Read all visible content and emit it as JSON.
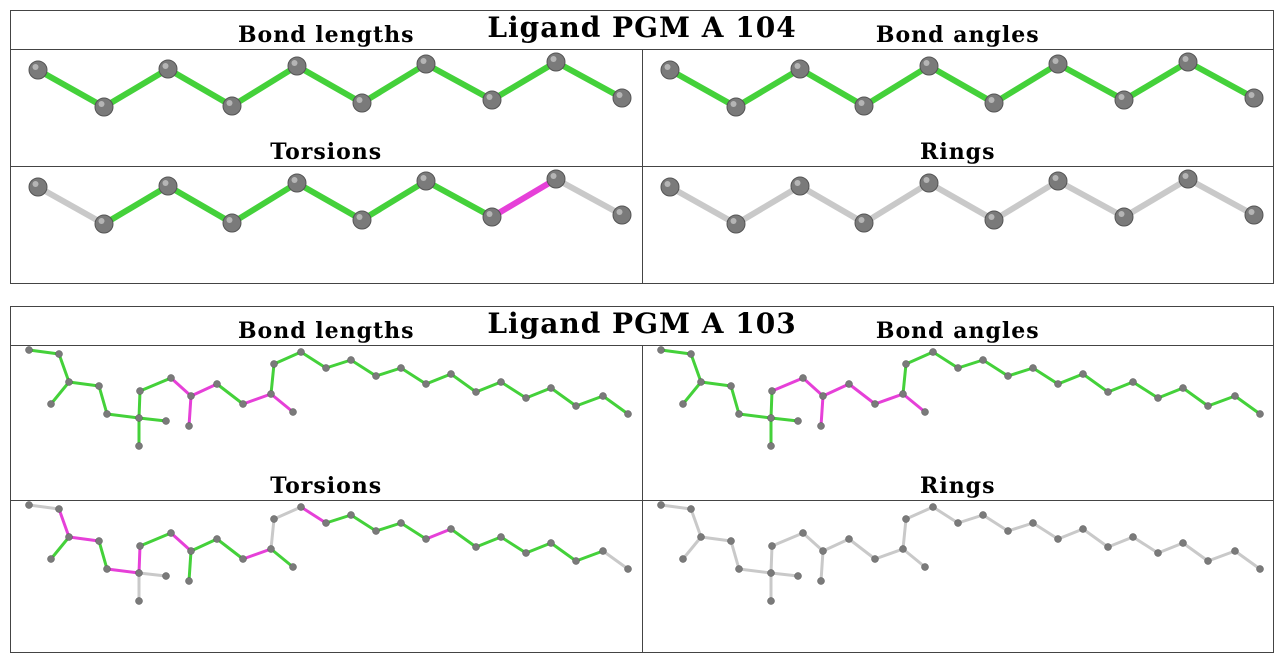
{
  "colors": {
    "bond_ok": "#44d13a",
    "bond_outlier": "#e640d8",
    "bond_neutral": "#c9c9c9",
    "atom": "#7a7a7a"
  },
  "ligands": [
    {
      "title": "Ligand PGM A 104",
      "molecule": "alkyl-chain",
      "panels": [
        {
          "caption": "Bond lengths",
          "bond_colors": [
            "ok",
            "ok",
            "ok",
            "ok",
            "ok",
            "ok",
            "ok",
            "ok",
            "ok"
          ]
        },
        {
          "caption": "Bond angles",
          "bond_colors": [
            "ok",
            "ok",
            "ok",
            "ok",
            "ok",
            "ok",
            "ok",
            "ok",
            "ok"
          ]
        },
        {
          "caption": "Torsions",
          "bond_colors": [
            "neutral",
            "ok",
            "ok",
            "ok",
            "ok",
            "ok",
            "ok",
            "outlier",
            "neutral"
          ]
        },
        {
          "caption": "Rings",
          "bond_colors": [
            "neutral",
            "neutral",
            "neutral",
            "neutral",
            "neutral",
            "neutral",
            "neutral",
            "neutral",
            "neutral"
          ]
        }
      ]
    },
    {
      "title": "Ligand PGM A 103",
      "molecule": "branched-lipid",
      "panels": [
        {
          "caption": "Bond lengths",
          "outlier_bonds": [
            10,
            11,
            12,
            14,
            15
          ]
        },
        {
          "caption": "Bond angles",
          "outlier_bonds": [
            9,
            10,
            11,
            12,
            13,
            14,
            15
          ]
        },
        {
          "caption": "Torsions",
          "outlier_bonds": [
            1,
            3,
            5,
            8,
            10,
            14,
            18,
            23
          ],
          "neutral_bonds": [
            0,
            6,
            7,
            16,
            17,
            30,
            31
          ]
        },
        {
          "caption": "Rings",
          "all_neutral": true
        }
      ]
    }
  ]
}
